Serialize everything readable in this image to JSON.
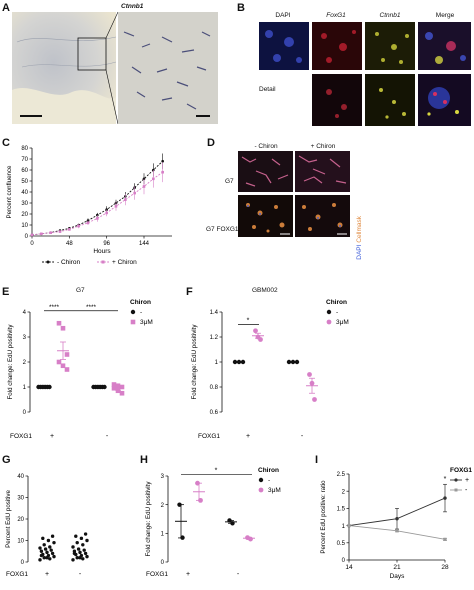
{
  "panels": {
    "A": {
      "letter": "A",
      "title": "Ctnnb1"
    },
    "B": {
      "letter": "B",
      "channels": [
        "DAPI",
        "FoxG1",
        "Ctnnb1",
        "Merge"
      ],
      "row_label": "Detail"
    },
    "C": {
      "letter": "C",
      "legend": [
        "- Chiron",
        "+ Chiron"
      ]
    },
    "D": {
      "letter": "D",
      "col_labels": [
        "- Chiron",
        "+ Chiron"
      ],
      "row_labels": [
        "G7",
        "G7 FOXG1 -/-"
      ],
      "stain_dapi": "DAPI",
      "stain_cellmask": "Cellmask"
    },
    "E": {
      "letter": "E",
      "title": "G7",
      "legend_title": "Chiron",
      "legend_items": [
        "-",
        "3μM"
      ],
      "row_label": "FOXG1",
      "groups": [
        "+",
        "-"
      ],
      "sig": [
        "****",
        "****"
      ]
    },
    "F": {
      "letter": "F",
      "title": "GBM002",
      "legend_title": "Chiron",
      "legend_items": [
        "-",
        "3μM"
      ],
      "row_label": "FOXG1",
      "groups": [
        "+",
        "-"
      ],
      "sig": [
        "*"
      ]
    },
    "G": {
      "letter": "G",
      "row_label": "FOXG1",
      "groups": [
        "+",
        "-"
      ]
    },
    "H": {
      "letter": "H",
      "legend_title": "Chiron",
      "legend_items": [
        "-",
        "3μM"
      ],
      "row_label": "FOXG1",
      "groups": [
        "+",
        "-"
      ],
      "sig": [
        "*"
      ]
    },
    "I": {
      "letter": "I",
      "legend_title": "FOXG1",
      "legend_items": [
        "+",
        "-"
      ],
      "sig": [
        "*"
      ]
    }
  },
  "colors": {
    "black": "#111111",
    "pink": "#d77fc7",
    "grey": "#9a9a9a"
  },
  "chart_data": [
    {
      "id": "C",
      "type": "line",
      "xlabel": "Hours",
      "ylabel": "Percent confluence",
      "xlim": [
        0,
        180
      ],
      "ylim": [
        0,
        80
      ],
      "xticks": [
        0,
        48,
        96,
        144
      ],
      "yticks": [
        0,
        10,
        20,
        30,
        40,
        50,
        60,
        70,
        80
      ],
      "x": [
        0,
        12,
        24,
        36,
        48,
        60,
        72,
        84,
        96,
        108,
        120,
        132,
        144,
        156,
        168
      ],
      "series": [
        {
          "name": "- Chiron",
          "values": [
            1,
            2,
            3,
            5,
            7,
            10,
            14,
            19,
            24,
            30,
            36,
            44,
            52,
            60,
            68
          ],
          "err": [
            0,
            1,
            1,
            1,
            1,
            1,
            2,
            2,
            3,
            3,
            4,
            4,
            5,
            6,
            7
          ]
        },
        {
          "name": "+ Chiron",
          "values": [
            1,
            2,
            3,
            4,
            6,
            9,
            12,
            16,
            21,
            27,
            33,
            39,
            45,
            52,
            58
          ],
          "err": [
            0,
            1,
            1,
            1,
            1,
            2,
            2,
            3,
            3,
            4,
            5,
            6,
            7,
            8,
            9
          ]
        }
      ]
    },
    {
      "id": "E",
      "type": "scatter",
      "ylabel": "Fold change: EdU positivity",
      "ylim": [
        0,
        4
      ],
      "yticks": [
        0,
        1,
        2,
        3,
        4
      ],
      "points": [
        {
          "group": 0,
          "series": "-",
          "values": [
            1,
            1,
            1,
            1,
            1,
            1
          ]
        },
        {
          "group": 0,
          "series": "3μM",
          "values": [
            3.55,
            3.35,
            2.3,
            2.0,
            1.85,
            1.7
          ]
        },
        {
          "group": 1,
          "series": "-",
          "values": [
            1,
            1,
            1,
            1,
            1,
            1
          ]
        },
        {
          "group": 1,
          "series": "3μM",
          "values": [
            1.1,
            1.05,
            1.0,
            0.95,
            0.85,
            0.75
          ]
        }
      ],
      "means": [
        {
          "group": 0,
          "series": "3μM",
          "mean": 2.45,
          "sem": 0.35
        },
        {
          "group": 1,
          "series": "3μM",
          "mean": 0.95,
          "sem": 0.08
        }
      ]
    },
    {
      "id": "F",
      "type": "scatter",
      "ylabel": "Fold change: EdU positivity",
      "ylim": [
        0.6,
        1.4
      ],
      "yticks": [
        0.6,
        0.8,
        1.0,
        1.2,
        1.4
      ],
      "points": [
        {
          "group": 0,
          "series": "-",
          "values": [
            1,
            1,
            1
          ]
        },
        {
          "group": 0,
          "series": "3μM",
          "values": [
            1.25,
            1.2,
            1.18
          ]
        },
        {
          "group": 1,
          "series": "-",
          "values": [
            1,
            1,
            1
          ]
        },
        {
          "group": 1,
          "series": "3μM",
          "values": [
            0.9,
            0.83,
            0.7
          ]
        }
      ],
      "means": [
        {
          "group": 0,
          "series": "3μM",
          "mean": 1.21,
          "sem": 0.02
        },
        {
          "group": 1,
          "series": "3μM",
          "mean": 0.81,
          "sem": 0.06
        }
      ]
    },
    {
      "id": "G",
      "type": "scatter",
      "ylabel": "Percent EdU positive",
      "ylim": [
        0,
        40
      ],
      "yticks": [
        0,
        10,
        20,
        30,
        40
      ],
      "points": [
        {
          "group": 0,
          "values": [
            1,
            1.5,
            2,
            2.5,
            3,
            3.5,
            4,
            4.5,
            5,
            5.5,
            6,
            6.5,
            7,
            8,
            9,
            10,
            11,
            12,
            2,
            3
          ]
        },
        {
          "group": 1,
          "values": [
            1,
            1.5,
            2,
            2.5,
            3,
            3.5,
            4,
            4.5,
            5,
            5.5,
            6,
            7,
            8,
            9,
            10,
            11,
            12,
            13,
            2,
            4
          ]
        }
      ]
    },
    {
      "id": "H",
      "type": "scatter",
      "ylabel": "Fold change: EdU positivity",
      "ylim": [
        0,
        3
      ],
      "yticks": [
        0,
        1,
        2,
        3
      ],
      "points": [
        {
          "group": 0,
          "series": "-",
          "values": [
            2.0,
            0.85
          ]
        },
        {
          "group": 0,
          "series": "3μM",
          "values": [
            2.75,
            2.15
          ]
        },
        {
          "group": 1,
          "series": "-",
          "values": [
            1.45,
            1.35
          ]
        },
        {
          "group": 1,
          "series": "3μM",
          "values": [
            0.85,
            0.8
          ]
        }
      ],
      "means": [
        {
          "group": 0,
          "series": "-",
          "mean": 1.42,
          "sem": 0.58
        },
        {
          "group": 0,
          "series": "3μM",
          "mean": 2.45,
          "sem": 0.3
        },
        {
          "group": 1,
          "series": "-",
          "mean": 1.4,
          "sem": 0.05
        },
        {
          "group": 1,
          "series": "3μM",
          "mean": 0.83,
          "sem": 0.02
        }
      ]
    },
    {
      "id": "I",
      "type": "line",
      "xlabel": "Days",
      "ylabel": "Percent EdU positive: ratio",
      "xlim": [
        14,
        28
      ],
      "ylim": [
        0,
        2.5
      ],
      "xticks": [
        14,
        21,
        28
      ],
      "yticks": [
        0,
        0.5,
        1.0,
        1.5,
        2.0,
        2.5
      ],
      "x": [
        14,
        21,
        28
      ],
      "series": [
        {
          "name": "+",
          "values": [
            1.0,
            1.2,
            1.8
          ],
          "err": [
            0,
            0.3,
            0.4
          ]
        },
        {
          "name": "-",
          "values": [
            1.0,
            0.85,
            0.6
          ],
          "err": [
            0,
            0.03,
            0.03
          ]
        }
      ]
    }
  ]
}
